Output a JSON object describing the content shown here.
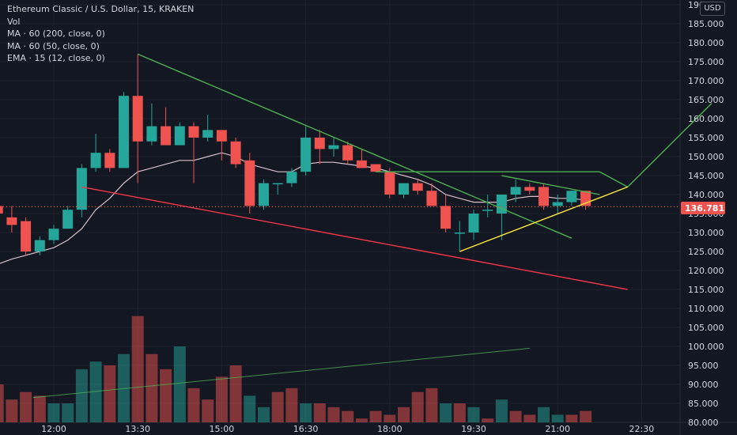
{
  "legend": {
    "title": "Ethereum Classic / U.S. Dollar, 15, KRAKEN",
    "vol": "Vol",
    "ma200": "MA · 60 (200, close, 0)",
    "ma50": "MA · 60 (50, close, 0)",
    "ema": "EMA · 15 (12, close, 0)"
  },
  "currency_button": "USD",
  "current_price": "136.781",
  "colors": {
    "up": "#26a69a",
    "down": "#ef5350",
    "background": "#131722",
    "grid": "#1e222d",
    "trendline_green": "#4caf50",
    "trendline_red": "#f23645",
    "trendline_yellow": "#ffeb3b",
    "ema": "#d8bfc8"
  },
  "chart_data": {
    "type": "candlestick",
    "title": "Ethereum Classic / U.S. Dollar, 15, KRAKEN",
    "y_ticks": [
      "80.000",
      "85.000",
      "90.000",
      "95.000",
      "100.000",
      "105.000",
      "110.000",
      "115.000",
      "120.000",
      "125.000",
      "130.000",
      "135.000",
      "140.000",
      "145.000",
      "150.000",
      "155.000",
      "160.000",
      "165.000",
      "170.000",
      "175.000",
      "180.000",
      "185.000",
      "190.000"
    ],
    "x_ticks": [
      {
        "label": "12:00",
        "t": 0
      },
      {
        "label": "13:30",
        "t": 6
      },
      {
        "label": "15:00",
        "t": 12
      },
      {
        "label": "16:30",
        "t": 18
      },
      {
        "label": "18:00",
        "t": 24
      },
      {
        "label": "19:30",
        "t": 30
      },
      {
        "label": "21:00",
        "t": 36
      },
      {
        "label": "22:30",
        "t": 42
      }
    ],
    "ylim": [
      80,
      192
    ],
    "candles": [
      {
        "t": -4,
        "o": 137,
        "h": 138,
        "l": 134,
        "c": 135
      },
      {
        "t": -3,
        "o": 134,
        "h": 137,
        "l": 130,
        "c": 132
      },
      {
        "t": -2,
        "o": 133,
        "h": 134,
        "l": 124,
        "c": 125
      },
      {
        "t": -1,
        "o": 125,
        "h": 129,
        "l": 124,
        "c": 128
      },
      {
        "t": 0,
        "o": 128,
        "h": 132,
        "l": 127,
        "c": 131
      },
      {
        "t": 1,
        "o": 131,
        "h": 137,
        "l": 131,
        "c": 136
      },
      {
        "t": 2,
        "o": 136,
        "h": 148,
        "l": 134,
        "c": 147
      },
      {
        "t": 3,
        "o": 147,
        "h": 156,
        "l": 146,
        "c": 151
      },
      {
        "t": 4,
        "o": 151,
        "h": 152,
        "l": 146,
        "c": 147
      },
      {
        "t": 5,
        "o": 147,
        "h": 167,
        "l": 147,
        "c": 166
      },
      {
        "t": 6,
        "o": 166,
        "h": 177,
        "l": 143,
        "c": 154
      },
      {
        "t": 7,
        "o": 154,
        "h": 164,
        "l": 153,
        "c": 158
      },
      {
        "t": 8,
        "o": 158,
        "h": 163,
        "l": 153,
        "c": 153
      },
      {
        "t": 9,
        "o": 153,
        "h": 159,
        "l": 153,
        "c": 158
      },
      {
        "t": 10,
        "o": 158,
        "h": 159,
        "l": 143,
        "c": 155
      },
      {
        "t": 11,
        "o": 155,
        "h": 161,
        "l": 154,
        "c": 157
      },
      {
        "t": 12,
        "o": 157,
        "h": 157,
        "l": 149,
        "c": 154
      },
      {
        "t": 13,
        "o": 154,
        "h": 155,
        "l": 147,
        "c": 148
      },
      {
        "t": 14,
        "o": 149,
        "h": 151,
        "l": 135,
        "c": 137
      },
      {
        "t": 15,
        "o": 137,
        "h": 144,
        "l": 136,
        "c": 143
      },
      {
        "t": 16,
        "o": 143,
        "h": 143,
        "l": 140,
        "c": 143
      },
      {
        "t": 17,
        "o": 143,
        "h": 147,
        "l": 142,
        "c": 146
      },
      {
        "t": 18,
        "o": 146,
        "h": 158,
        "l": 145,
        "c": 155
      },
      {
        "t": 19,
        "o": 155,
        "h": 157,
        "l": 148,
        "c": 152
      },
      {
        "t": 20,
        "o": 152,
        "h": 155,
        "l": 150,
        "c": 153
      },
      {
        "t": 21,
        "o": 153,
        "h": 154,
        "l": 148,
        "c": 149
      },
      {
        "t": 22,
        "o": 149,
        "h": 152,
        "l": 147,
        "c": 147
      },
      {
        "t": 23,
        "o": 148,
        "h": 148,
        "l": 146,
        "c": 146
      },
      {
        "t": 24,
        "o": 146,
        "h": 147,
        "l": 139,
        "c": 140
      },
      {
        "t": 25,
        "o": 140,
        "h": 142,
        "l": 139,
        "c": 143
      },
      {
        "t": 26,
        "o": 143,
        "h": 144,
        "l": 140,
        "c": 141
      },
      {
        "t": 27,
        "o": 141,
        "h": 143,
        "l": 137,
        "c": 137
      },
      {
        "t": 28,
        "o": 137,
        "h": 140,
        "l": 130,
        "c": 131
      },
      {
        "t": 29,
        "o": 130,
        "h": 133,
        "l": 125,
        "c": 130
      },
      {
        "t": 30,
        "o": 130,
        "h": 136,
        "l": 128,
        "c": 135
      },
      {
        "t": 31,
        "o": 136,
        "h": 140,
        "l": 134,
        "c": 136
      },
      {
        "t": 32,
        "o": 135,
        "h": 140,
        "l": 128,
        "c": 140
      },
      {
        "t": 33,
        "o": 140,
        "h": 144,
        "l": 138,
        "c": 142
      },
      {
        "t": 34,
        "o": 142,
        "h": 143,
        "l": 140,
        "c": 141
      },
      {
        "t": 35,
        "o": 142,
        "h": 143,
        "l": 136,
        "c": 137
      },
      {
        "t": 36,
        "o": 137,
        "h": 140,
        "l": 135,
        "c": 138
      },
      {
        "t": 37,
        "o": 138,
        "h": 141,
        "l": 137,
        "c": 141
      },
      {
        "t": 38,
        "o": 141,
        "h": 141,
        "l": 136,
        "c": 137
      }
    ],
    "volumes": [
      {
        "t": -4,
        "v": 90,
        "up": false
      },
      {
        "t": -3,
        "v": 86,
        "up": false
      },
      {
        "t": -2,
        "v": 88,
        "up": false
      },
      {
        "t": -1,
        "v": 87,
        "up": false
      },
      {
        "t": 0,
        "v": 85,
        "up": true
      },
      {
        "t": 1,
        "v": 85,
        "up": true
      },
      {
        "t": 2,
        "v": 94,
        "up": true
      },
      {
        "t": 3,
        "v": 96,
        "up": true
      },
      {
        "t": 4,
        "v": 95,
        "up": false
      },
      {
        "t": 5,
        "v": 98,
        "up": true
      },
      {
        "t": 6,
        "v": 108,
        "up": false
      },
      {
        "t": 7,
        "v": 98,
        "up": false
      },
      {
        "t": 8,
        "v": 94,
        "up": false
      },
      {
        "t": 9,
        "v": 100,
        "up": true
      },
      {
        "t": 10,
        "v": 89,
        "up": false
      },
      {
        "t": 11,
        "v": 86,
        "up": false
      },
      {
        "t": 12,
        "v": 92,
        "up": false
      },
      {
        "t": 13,
        "v": 95,
        "up": false
      },
      {
        "t": 14,
        "v": 87,
        "up": true
      },
      {
        "t": 15,
        "v": 84,
        "up": true
      },
      {
        "t": 16,
        "v": 88,
        "up": false
      },
      {
        "t": 17,
        "v": 89,
        "up": false
      },
      {
        "t": 18,
        "v": 85,
        "up": true
      },
      {
        "t": 19,
        "v": 85,
        "up": false
      },
      {
        "t": 20,
        "v": 84,
        "up": false
      },
      {
        "t": 21,
        "v": 83,
        "up": false
      },
      {
        "t": 22,
        "v": 81,
        "up": false
      },
      {
        "t": 23,
        "v": 83,
        "up": false
      },
      {
        "t": 24,
        "v": 82,
        "up": false
      },
      {
        "t": 25,
        "v": 84,
        "up": false
      },
      {
        "t": 26,
        "v": 88,
        "up": false
      },
      {
        "t": 27,
        "v": 89,
        "up": false
      },
      {
        "t": 28,
        "v": 85,
        "up": true
      },
      {
        "t": 29,
        "v": 85,
        "up": false
      },
      {
        "t": 30,
        "v": 84,
        "up": true
      },
      {
        "t": 31,
        "v": 81,
        "up": false
      },
      {
        "t": 32,
        "v": 86,
        "up": true
      },
      {
        "t": 33,
        "v": 83,
        "up": false
      },
      {
        "t": 34,
        "v": 82,
        "up": false
      },
      {
        "t": 35,
        "v": 84,
        "up": true
      },
      {
        "t": 36,
        "v": 82,
        "up": true
      },
      {
        "t": 37,
        "v": 82,
        "up": false
      },
      {
        "t": 38,
        "v": 83,
        "up": false
      }
    ],
    "ema_line": [
      [
        -4.5,
        121
      ],
      [
        -3,
        123
      ],
      [
        -2,
        124
      ],
      [
        -1,
        125
      ],
      [
        0,
        126
      ],
      [
        1,
        128
      ],
      [
        2,
        131
      ],
      [
        3,
        136
      ],
      [
        4,
        139
      ],
      [
        5,
        143
      ],
      [
        6,
        146
      ],
      [
        7,
        147
      ],
      [
        8,
        148
      ],
      [
        9,
        149
      ],
      [
        10,
        149
      ],
      [
        11,
        150
      ],
      [
        12,
        151
      ],
      [
        13,
        150
      ],
      [
        14,
        148
      ],
      [
        15,
        147
      ],
      [
        16,
        146
      ],
      [
        17,
        146
      ],
      [
        18,
        148
      ],
      [
        19,
        148.5
      ],
      [
        20,
        148.5
      ],
      [
        21,
        148
      ],
      [
        22,
        147.5
      ],
      [
        23,
        147
      ],
      [
        24,
        146
      ],
      [
        25,
        145
      ],
      [
        26,
        144
      ],
      [
        27,
        142.5
      ],
      [
        28,
        140
      ],
      [
        29,
        139
      ],
      [
        30,
        138
      ],
      [
        31,
        138
      ],
      [
        32,
        138
      ],
      [
        33,
        139
      ],
      [
        34,
        139.5
      ],
      [
        35,
        139.5
      ],
      [
        36,
        139
      ],
      [
        37,
        139
      ],
      [
        38,
        138.5
      ]
    ],
    "volume_ma_line": [
      [
        -1.5,
        86.5
      ],
      [
        34,
        99.5
      ]
    ],
    "trendlines": [
      {
        "color": "green",
        "points": [
          [
            6,
            177
          ],
          [
            37,
            128.5
          ]
        ]
      },
      {
        "color": "green",
        "points": [
          [
            23,
            146
          ],
          [
            39,
            146
          ]
        ]
      },
      {
        "color": "green",
        "points": [
          [
            32,
            145
          ],
          [
            39,
            140
          ]
        ]
      },
      {
        "color": "green",
        "points": [
          [
            39,
            146
          ],
          [
            41,
            142
          ],
          [
            47,
            164
          ]
        ]
      },
      {
        "color": "red",
        "points": [
          [
            2,
            142
          ],
          [
            41,
            115
          ]
        ]
      },
      {
        "color": "yellow",
        "points": [
          [
            29,
            125
          ],
          [
            41,
            142
          ]
        ]
      }
    ]
  }
}
